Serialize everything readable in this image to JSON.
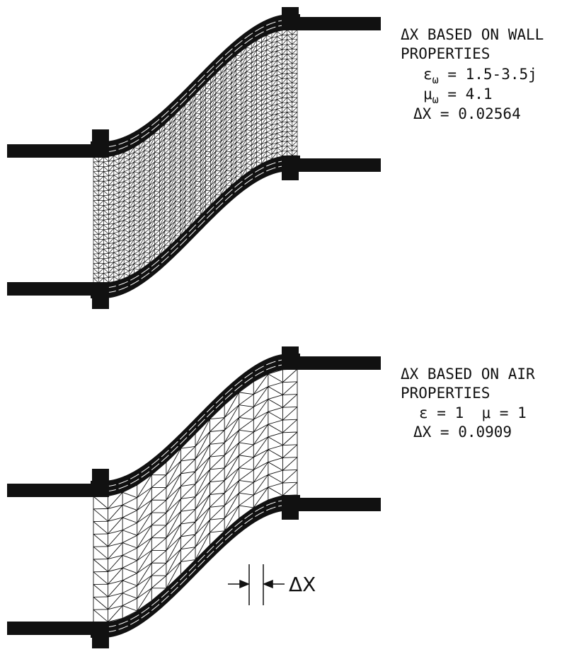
{
  "figures": [
    {
      "annotation": {
        "heading": "ΔX BASED ON WALL",
        "subheading": "PROPERTIES",
        "epsilon": {
          "symbol": "ε",
          "subscript": "ω",
          "text": " = 1.5-3.5j"
        },
        "mu": {
          "symbol": "μ",
          "subscript": "ω",
          "text": " = 4.1"
        },
        "delta_x": "ΔX = 0.02564"
      }
    },
    {
      "annotation": {
        "heading": "ΔX BASED ON AIR",
        "subheading": "PROPERTIES",
        "material": "ε = 1  μ = 1",
        "delta_x": "ΔX = 0.0909"
      },
      "dimension_label": "ΔX"
    }
  ]
}
